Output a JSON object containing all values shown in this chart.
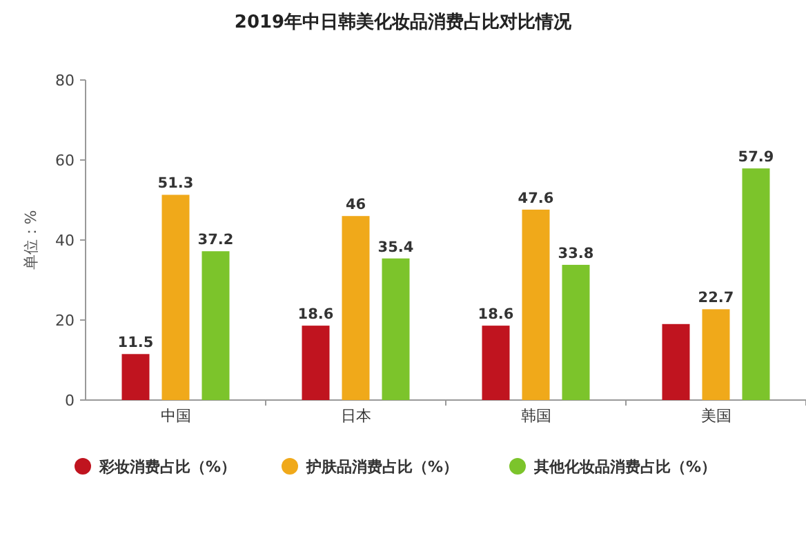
{
  "chart_data": {
    "type": "bar",
    "title": "2019年中日韩美化妆品消费占比对比情况",
    "ylabel": "单位：%",
    "categories": [
      "中国",
      "日本",
      "韩国",
      "美国"
    ],
    "series": [
      {
        "name": "彩妆消费占比（%）",
        "color": "#c0141f",
        "values": [
          11.5,
          18.6,
          18.6,
          19
        ],
        "value_labels": [
          "11.5",
          "18.6",
          "18.6",
          null
        ]
      },
      {
        "name": "护肤品消费占比（%）",
        "color": "#f0a91a",
        "values": [
          51.3,
          46,
          47.6,
          22.7
        ],
        "value_labels": [
          "51.3",
          "46",
          "47.6",
          "22.7"
        ]
      },
      {
        "name": "其他化妆品消费占比（%）",
        "color": "#7cc42b",
        "values": [
          37.2,
          35.4,
          33.8,
          57.9
        ],
        "value_labels": [
          "37.2",
          "35.4",
          "33.8",
          "57.9"
        ]
      }
    ],
    "ylim": [
      0,
      80
    ],
    "yticks": [
      0,
      20,
      40,
      60,
      80
    ],
    "grid": false,
    "legend": "bottom"
  }
}
